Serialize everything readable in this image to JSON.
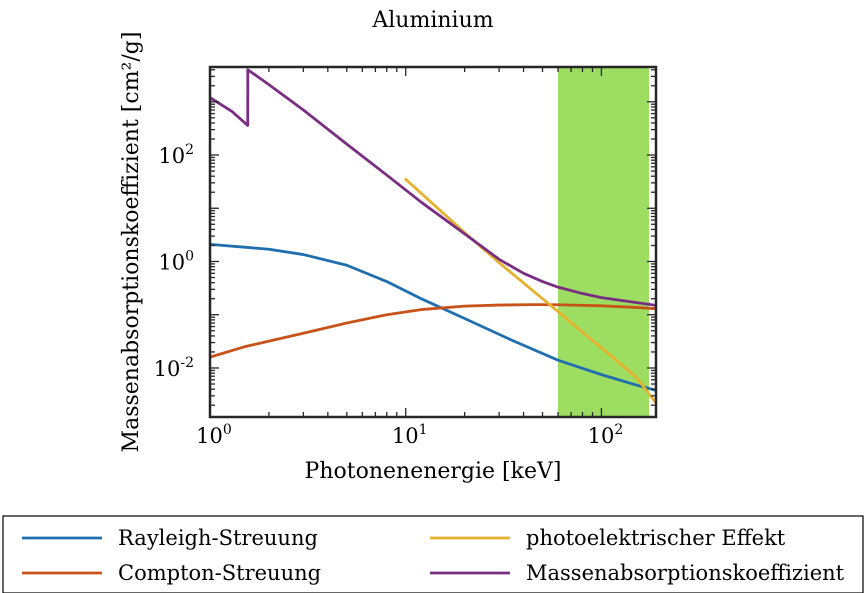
{
  "chart_data": {
    "type": "line",
    "title": "Aluminium",
    "xlabel": "Photonenenergie [keV]",
    "ylabel": "Massenabsorptionskoeffizient [cm²/g]",
    "xscale": "log",
    "yscale": "log",
    "xlim": [
      1,
      190
    ],
    "ylim": [
      0.0012,
      4500
    ],
    "grid": false,
    "legend_position": "bottom",
    "x_ticks": [
      {
        "value": 1,
        "base": "10",
        "exp": "0"
      },
      {
        "value": 10,
        "base": "10",
        "exp": "1"
      },
      {
        "value": 100,
        "base": "10",
        "exp": "2"
      }
    ],
    "y_ticks": [
      {
        "value": 0.01,
        "base": "10",
        "exp": "-2"
      },
      {
        "value": 1,
        "base": "10",
        "exp": "0"
      },
      {
        "value": 100,
        "base": "10",
        "exp": "2"
      }
    ],
    "highlight_band": {
      "x_from": 60,
      "x_to": 175,
      "color": "#9ddd62"
    },
    "series": [
      {
        "name": "Rayleigh-Streuung",
        "color": "#1f6fae",
        "x": [
          1,
          2,
          3,
          5,
          8,
          12,
          20,
          35,
          60,
          100,
          150,
          190
        ],
        "y": [
          2.1,
          1.7,
          1.35,
          0.85,
          0.42,
          0.2,
          0.085,
          0.033,
          0.014,
          0.0075,
          0.0048,
          0.0038
        ]
      },
      {
        "name": "Compton-Streuung",
        "color": "#c8531a",
        "x": [
          1,
          1.5,
          2,
          3,
          5,
          8,
          12,
          20,
          30,
          45,
          60,
          100,
          150,
          190
        ],
        "y": [
          0.016,
          0.025,
          0.032,
          0.045,
          0.07,
          0.1,
          0.125,
          0.145,
          0.152,
          0.155,
          0.154,
          0.147,
          0.137,
          0.13
        ]
      },
      {
        "name": "photoelektrischer Effekt",
        "color": "#e6b22e",
        "x": [
          10,
          20,
          30,
          50,
          60,
          80,
          100,
          150,
          190
        ],
        "y": [
          35,
          3.5,
          0.95,
          0.2,
          0.115,
          0.047,
          0.024,
          0.0068,
          0.0022
        ]
      },
      {
        "name": "Massenabsorptionskoeffizient",
        "color": "#7a2e82",
        "x": [
          1,
          1.3,
          1.559,
          1.56,
          2,
          3,
          5,
          8,
          12,
          20,
          30,
          40,
          50,
          60,
          80,
          100,
          150,
          190
        ],
        "y": [
          1200,
          650,
          360,
          4000,
          2100,
          700,
          160,
          42,
          13,
          3.3,
          1.1,
          0.6,
          0.42,
          0.33,
          0.25,
          0.21,
          0.17,
          0.15
        ]
      }
    ]
  }
}
